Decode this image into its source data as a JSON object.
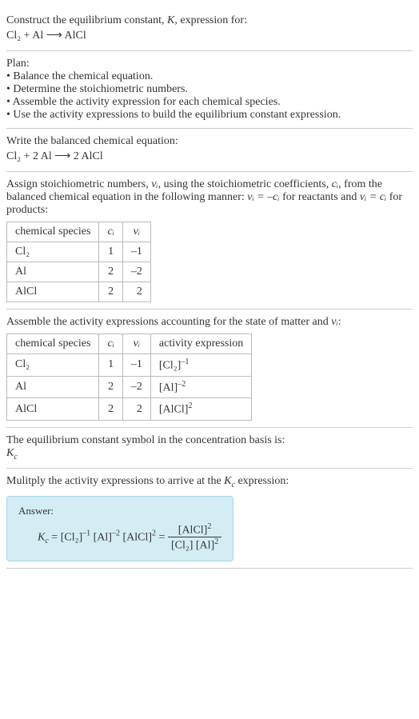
{
  "header": {
    "title_line1": "Construct the equilibrium constant, ",
    "title_K": "K",
    "title_line1_end": ", expression for:",
    "equation_unbalanced": "Cl₂ + Al ⟶ AlCl"
  },
  "plan": {
    "title": "Plan:",
    "bullets": [
      "• Balance the chemical equation.",
      "• Determine the stoichiometric numbers.",
      "• Assemble the activity expression for each chemical species.",
      "• Use the activity expressions to build the equilibrium constant expression."
    ]
  },
  "balanced": {
    "title": "Write the balanced chemical equation:",
    "equation": "Cl₂ + 2 Al ⟶ 2 AlCl"
  },
  "stoich": {
    "intro_1": "Assign stoichiometric numbers, ",
    "nu_i": "νᵢ",
    "intro_2": ", using the stoichiometric coefficients, ",
    "c_i": "cᵢ",
    "intro_3": ", from the balanced chemical equation in the following manner: ",
    "rel_reactants": "νᵢ = –cᵢ",
    "intro_4": " for reactants and ",
    "rel_products": "νᵢ = cᵢ",
    "intro_5": " for products:",
    "table": {
      "headers": [
        "chemical species",
        "cᵢ",
        "νᵢ"
      ],
      "rows": [
        [
          "Cl₂",
          "1",
          "–1"
        ],
        [
          "Al",
          "2",
          "–2"
        ],
        [
          "AlCl",
          "2",
          "2"
        ]
      ]
    }
  },
  "activity": {
    "intro_1": "Assemble the activity expressions accounting for the state of matter and ",
    "nu_i": "νᵢ",
    "intro_2": ":",
    "table": {
      "headers": [
        "chemical species",
        "cᵢ",
        "νᵢ",
        "activity expression"
      ],
      "rows": [
        {
          "sp": "Cl₂",
          "c": "1",
          "nu": "–1",
          "expr_base": "[Cl₂]",
          "expr_exp": "–1"
        },
        {
          "sp": "Al",
          "c": "2",
          "nu": "–2",
          "expr_base": "[Al]",
          "expr_exp": "–2"
        },
        {
          "sp": "AlCl",
          "c": "2",
          "nu": "2",
          "expr_base": "[AlCl]",
          "expr_exp": "2"
        }
      ]
    }
  },
  "symbol": {
    "line": "The equilibrium constant symbol in the concentration basis is:",
    "Kc": "K",
    "Kc_sub": "c"
  },
  "multiply": {
    "intro_1": "Mulitply the activity expressions to arrive at the ",
    "Kc": "K",
    "Kc_sub": "c",
    "intro_2": " expression:"
  },
  "answer": {
    "label": "Answer:",
    "lhs_K": "K",
    "lhs_sub": "c",
    "term1_base": "[Cl₂]",
    "term1_exp": "–1",
    "term2_base": "[Al]",
    "term2_exp": "–2",
    "term3_base": "[AlCl]",
    "term3_exp": "2",
    "frac_num_base": "[AlCl]",
    "frac_num_exp": "2",
    "frac_den1": "[Cl₂]",
    "frac_den2_base": "[Al]",
    "frac_den2_exp": "2"
  }
}
